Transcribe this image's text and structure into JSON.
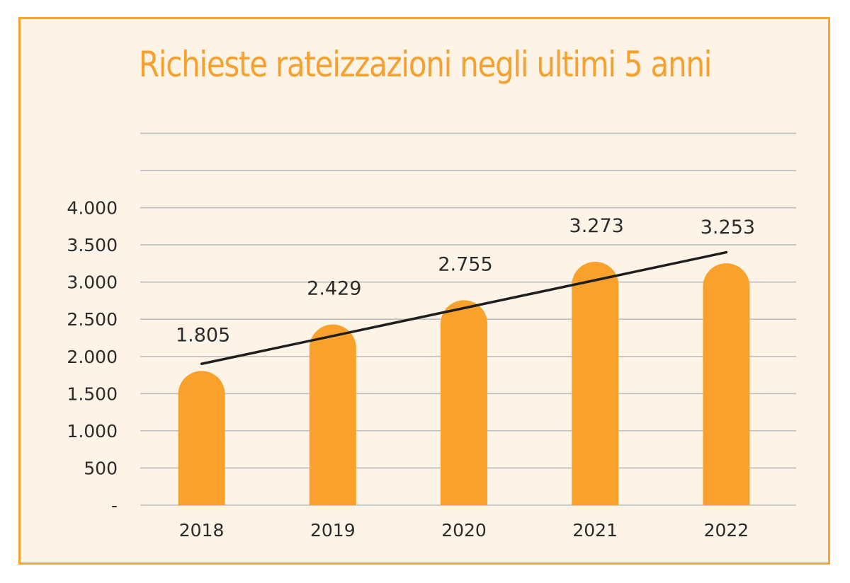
{
  "chart_data": {
    "type": "bar",
    "title": "Richieste rateizzazioni negli ultimi 5 anni",
    "categories": [
      "2018",
      "2019",
      "2020",
      "2021",
      "2022"
    ],
    "values": [
      1805,
      2429,
      2755,
      3273,
      3253
    ],
    "data_labels": [
      "1.805",
      "2.429",
      "2.755",
      "3.273",
      "3.253"
    ],
    "y_ticks": [
      0,
      500,
      1000,
      1500,
      2000,
      2500,
      3000,
      3500,
      4000
    ],
    "y_tick_labels": [
      "-",
      "500",
      "1.000",
      "1.500",
      "2.000",
      "2.500",
      "3.000",
      "3.500",
      "4.000"
    ],
    "gridlines_values": [
      0,
      500,
      1000,
      1500,
      2000,
      2500,
      3000,
      3500,
      4000,
      4500,
      5000
    ],
    "ylim": [
      0,
      5000
    ],
    "xlabel": "",
    "ylabel": "",
    "grid": true,
    "legend": "none",
    "trendline": {
      "type": "linear",
      "start_value": 1900,
      "end_value": 3400
    },
    "colors": {
      "bar": "#f9a12a",
      "trendline": "#1e1e1e",
      "gridline": "#bdbdbd",
      "title": "#f6a02e",
      "frame_border": "#f6a531",
      "background": "#fdf4e7"
    }
  }
}
